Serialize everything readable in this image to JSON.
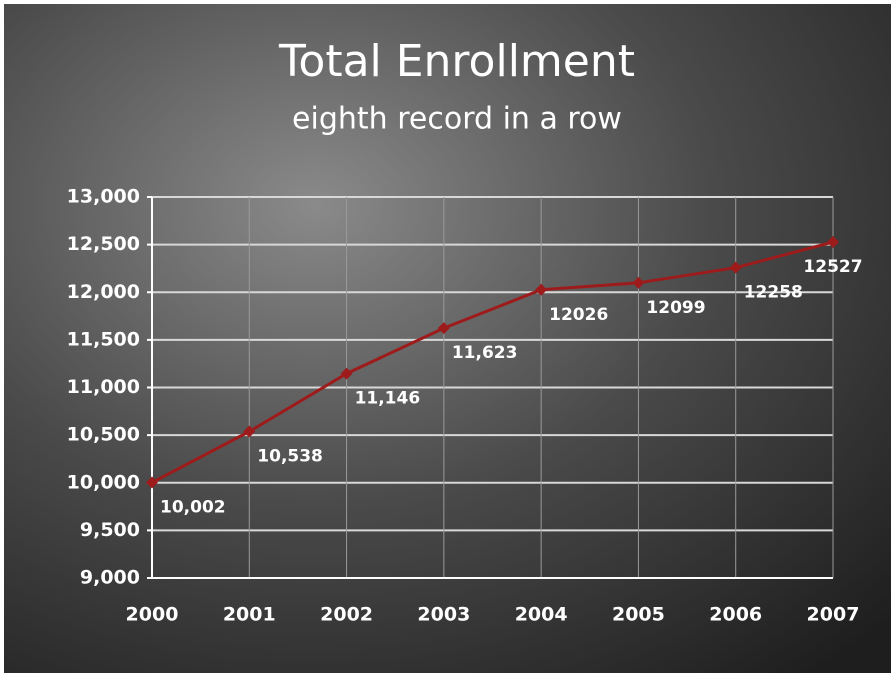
{
  "chart_data": {
    "type": "line",
    "title": "Total Enrollment",
    "subtitle": "eighth record in a row",
    "categories": [
      "2000",
      "2001",
      "2002",
      "2003",
      "2004",
      "2005",
      "2006",
      "2007"
    ],
    "values": [
      10002,
      10538,
      11146,
      11623,
      12026,
      12099,
      12258,
      12527
    ],
    "value_labels": [
      "10,002",
      "10,538",
      "11,146",
      "11,623",
      "12026",
      "12099",
      "12258",
      "12527"
    ],
    "color": "#9e1b1b",
    "ylim": [
      9000,
      13000
    ],
    "yticks": [
      {
        "value": 9000,
        "label": "9,000"
      },
      {
        "value": 9500,
        "label": "9,500"
      },
      {
        "value": 10000,
        "label": "10,000"
      },
      {
        "value": 10500,
        "label": "10,500"
      },
      {
        "value": 11000,
        "label": "11,000"
      },
      {
        "value": 11500,
        "label": "11,500"
      },
      {
        "value": 12000,
        "label": "12,000"
      },
      {
        "value": 12500,
        "label": "12,500"
      },
      {
        "value": 13000,
        "label": "13,000"
      }
    ],
    "grid": true
  }
}
